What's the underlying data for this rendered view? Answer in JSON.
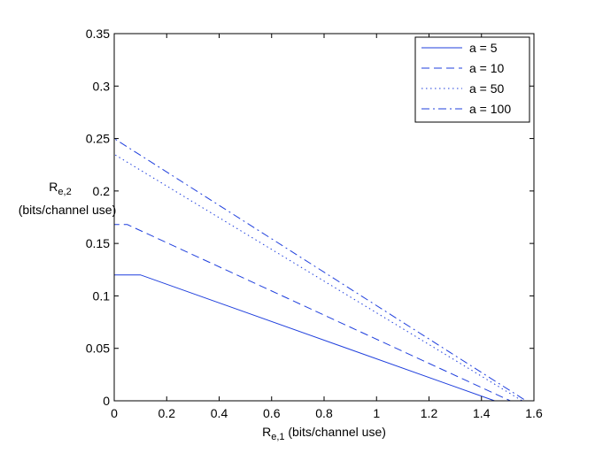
{
  "chart_data": {
    "type": "line",
    "xlim": [
      0,
      1.6
    ],
    "ylim": [
      0,
      0.35
    ],
    "xticks": [
      0,
      0.2,
      0.4,
      0.6,
      0.8,
      1,
      1.2,
      1.4,
      1.6
    ],
    "xtick_labels": [
      "0",
      "0.2",
      "0.4",
      "0.6",
      "0.8",
      "1",
      "1.2",
      "1.4",
      "1.6"
    ],
    "yticks": [
      0,
      0.05,
      0.1,
      0.15,
      0.2,
      0.25,
      0.3,
      0.35
    ],
    "ytick_labels": [
      "0",
      "0.05",
      "0.1",
      "0.15",
      "0.2",
      "0.25",
      "0.3",
      "0.35"
    ],
    "xlabel": {
      "main": "R",
      "sub": "e,1",
      "rest": " (bits/channel use)"
    },
    "ylabel": {
      "main": "R",
      "sub": "e,2",
      "line2": "(bits/channel use)"
    },
    "grid": false,
    "legend_position": "top-right",
    "color": "#1f3fdd",
    "series": [
      {
        "name": "a = 5",
        "dash": "solid",
        "x": [
          0,
          0,
          0.1,
          1.45,
          0
        ],
        "y": [
          0,
          0.12,
          0.12,
          0,
          0
        ]
      },
      {
        "name": "a = 10",
        "dash": "dashed",
        "x": [
          0,
          0,
          0.05,
          1.51
        ],
        "y": [
          0,
          0.168,
          0.168,
          0
        ]
      },
      {
        "name": "a = 50",
        "dash": "dotted",
        "x": [
          0,
          0,
          1.555
        ],
        "y": [
          0,
          0.235,
          0
        ]
      },
      {
        "name": "a = 100",
        "dash": "dashdot",
        "x": [
          0,
          0,
          1.57
        ],
        "y": [
          0,
          0.25,
          0
        ]
      }
    ]
  }
}
